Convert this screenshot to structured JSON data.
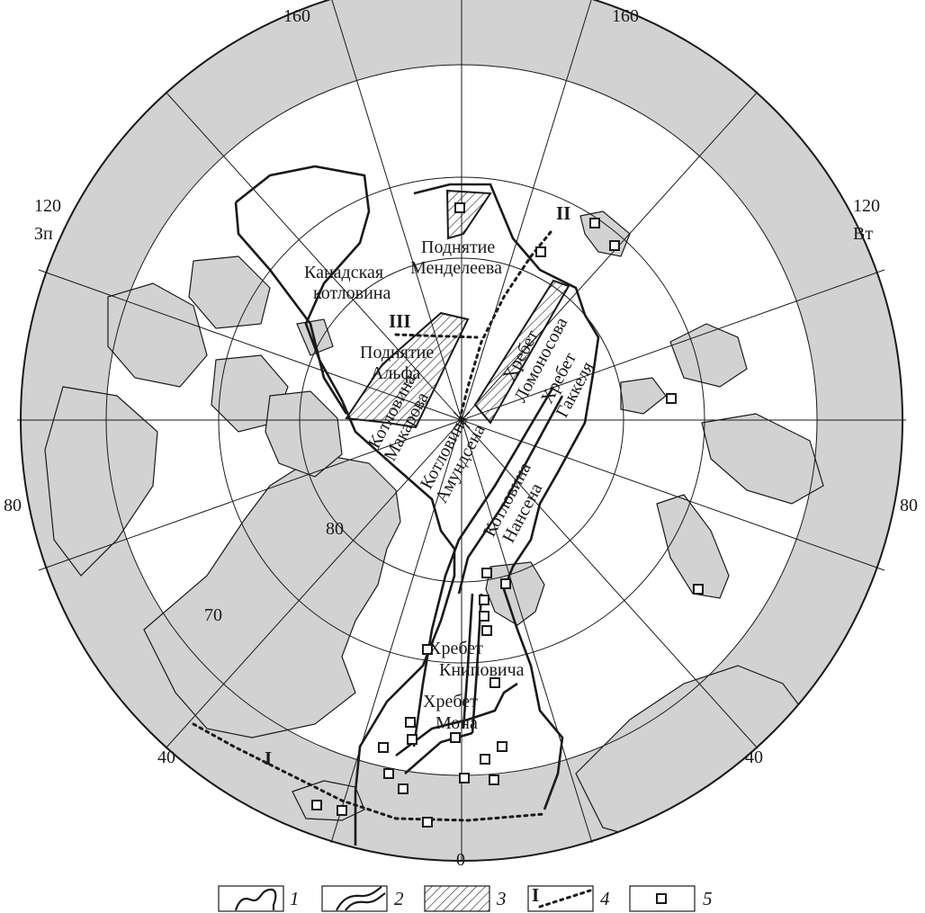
{
  "map": {
    "degree_labels": {
      "lon_top_left": "160",
      "lon_top_right": "160",
      "lon_upper_left": "120",
      "lon_upper_right": "120",
      "lon_mid_left": "80",
      "lon_mid_right": "80",
      "lon_lower_left": "40",
      "lon_lower_right": "40",
      "lon_bottom": "0",
      "lat_80": "80",
      "lat_70": "70"
    },
    "hemisphere": {
      "west": "Зп",
      "east": "Вт"
    },
    "features": {
      "mendeleev": [
        "Поднятие",
        "Менделеева"
      ],
      "canada_basin": [
        "Канадская",
        "котловина"
      ],
      "alpha": [
        "Поднятие",
        "Альфа"
      ],
      "lomonosov": [
        "Хребет",
        "Ломоносова"
      ],
      "gakkel": [
        "Хребет",
        "Гаккеля"
      ],
      "makarov": [
        "Котловина",
        "Макарова"
      ],
      "amundsen": [
        "Котловина",
        "Амундсена"
      ],
      "nansen": [
        "Котловина",
        "Нансена"
      ],
      "knipovich": [
        "Хребет",
        "Книповича"
      ],
      "mohns": [
        "Хребет",
        "Мона"
      ]
    },
    "profiles": {
      "p1": "I",
      "p2": "II",
      "p3": "III"
    },
    "colors": {
      "land": "#d2d2d2",
      "line": "#1a1a1a",
      "ocean": "#ffffff"
    },
    "legend": [
      {
        "num": "1",
        "icon": "contour-line-icon"
      },
      {
        "num": "2",
        "icon": "double-line-icon"
      },
      {
        "num": "3",
        "icon": "hatched-area-icon"
      },
      {
        "num": "4",
        "icon": "dotted-profile-icon",
        "mark": "I"
      },
      {
        "num": "5",
        "icon": "square-marker-icon"
      }
    ]
  }
}
